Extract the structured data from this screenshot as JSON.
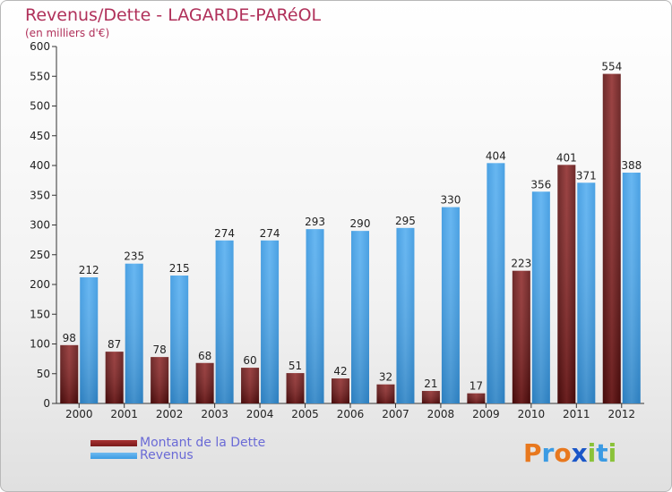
{
  "chart_data": {
    "type": "bar",
    "title": "Revenus/Dette - LAGARDE-PARéOL",
    "subtitle": "(en milliers d'€)",
    "categories": [
      "2000",
      "2001",
      "2002",
      "2003",
      "2004",
      "2005",
      "2006",
      "2007",
      "2008",
      "2009",
      "2010",
      "2011",
      "2012"
    ],
    "series": [
      {
        "name": "Montant de la Dette",
        "color": "#7a1a1a",
        "values": [
          98,
          87,
          78,
          68,
          60,
          51,
          42,
          32,
          21,
          17,
          223,
          401,
          554
        ]
      },
      {
        "name": "Revenus",
        "color": "#3b9be3",
        "values": [
          212,
          235,
          215,
          274,
          274,
          293,
          290,
          295,
          330,
          404,
          356,
          371,
          388
        ]
      }
    ],
    "ylim": [
      0,
      600
    ],
    "yticks": [
      0,
      50,
      100,
      150,
      200,
      250,
      300,
      350,
      400,
      450,
      500,
      550,
      600
    ],
    "xlabel": "",
    "ylabel": "",
    "grid": false,
    "legend_position": "bottom-left"
  },
  "legend": [
    {
      "label": "Montant de la Dette",
      "color": "#7a1a1a"
    },
    {
      "label": "Revenus",
      "color": "#3b9be3"
    }
  ],
  "logo": {
    "text": "Proxiti",
    "letters": [
      "P",
      "r",
      "o",
      "x",
      "i",
      "t",
      "i"
    ],
    "colors": [
      "#e8781e",
      "#3b9be3",
      "#e8781e",
      "#1a56c8",
      "#8ac23a",
      "#3b9be3",
      "#8ac23a"
    ]
  }
}
